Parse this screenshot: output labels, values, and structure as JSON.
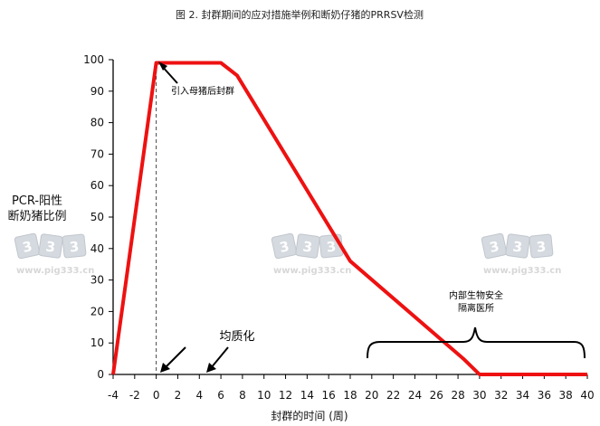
{
  "chart_data": {
    "type": "line",
    "title": "图 2. 封群期间的应对措施举例和断奶仔猪的PRRSV检测",
    "xlabel": "封群的时间 (周)",
    "ylabel_lines": [
      "PCR-阳性",
      "断奶猪比例"
    ],
    "xlim": [
      -4,
      40
    ],
    "ylim": [
      0,
      100
    ],
    "x_ticks": [
      -4,
      -2,
      0,
      2,
      4,
      6,
      8,
      10,
      12,
      14,
      16,
      18,
      20,
      22,
      24,
      26,
      28,
      30,
      32,
      34,
      36,
      38,
      40
    ],
    "y_ticks": [
      0,
      10,
      20,
      30,
      40,
      50,
      60,
      70,
      80,
      90,
      100
    ],
    "series": [
      {
        "color": "#ee1111",
        "x": [
          -4,
          0,
          6,
          7.5,
          18,
          28.5,
          30,
          40
        ],
        "y": [
          0,
          99,
          99,
          95,
          36,
          5,
          0,
          0
        ]
      }
    ],
    "annotations": {
      "arrow_label": "引入母猪后封群",
      "mid_label": "均质化",
      "brace_label_line1": "内部生物安全",
      "brace_label_line2": "隔离医所"
    },
    "grid": false,
    "legend": "none"
  },
  "watermarks": [
    {
      "digits": "333",
      "text": "www.pig333.cn"
    },
    {
      "digits": "333",
      "text": "www.pig333.cn"
    },
    {
      "digits": "333",
      "text": "www.pig333.cn"
    }
  ]
}
